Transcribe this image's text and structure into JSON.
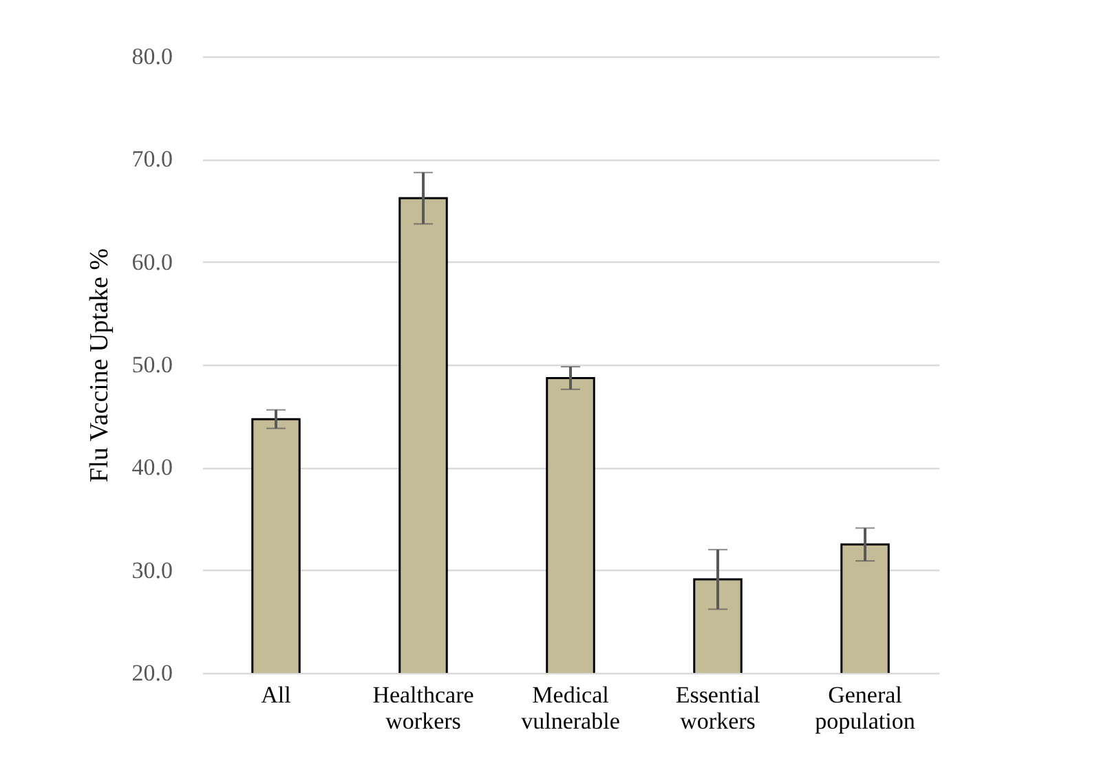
{
  "chart_data": {
    "type": "bar",
    "ylabel": "Flu Vaccine Uptake %",
    "categories": [
      "All",
      "Healthcare workers",
      "Medical vulnerable",
      "Essential workers",
      "General population"
    ],
    "values": [
      44.7,
      66.2,
      48.7,
      29.1,
      32.5
    ],
    "errors": [
      0.9,
      2.5,
      1.1,
      2.9,
      1.6
    ],
    "color": "#c4bc96",
    "ylim": [
      20,
      80
    ],
    "yticks": [
      {
        "value": 20,
        "label": "20.0"
      },
      {
        "value": 30,
        "label": "30.0"
      },
      {
        "value": 40,
        "label": "40.0"
      },
      {
        "value": 50,
        "label": "50.0"
      },
      {
        "value": 60,
        "label": "60.0"
      },
      {
        "value": 70,
        "label": "70.0"
      },
      {
        "value": 80,
        "label": "80.0"
      }
    ],
    "grid": "y"
  }
}
